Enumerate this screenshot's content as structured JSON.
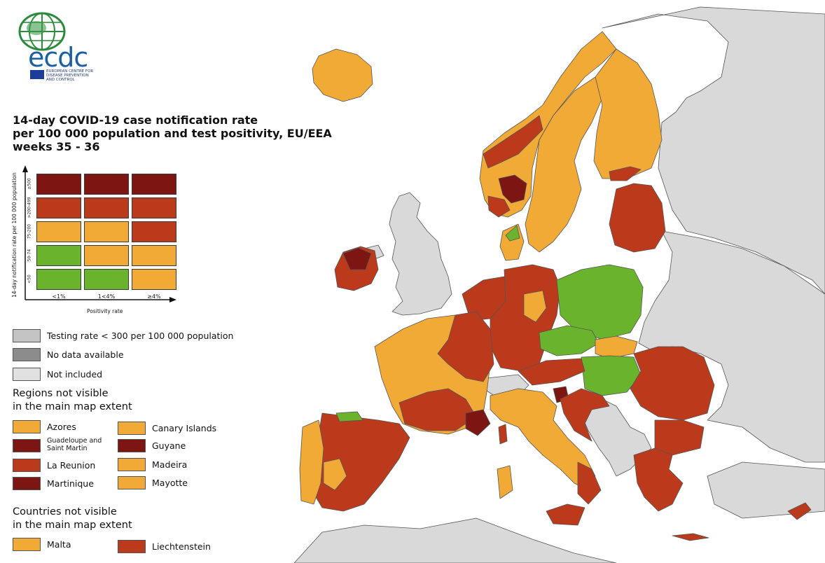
{
  "logo": {
    "wordmark": "ecdc",
    "subtitle_lines": [
      "EUROPEAN CENTRE FOR",
      "DISEASE PREVENTION",
      "AND CONTROL"
    ]
  },
  "title_lines": [
    "14-day COVID-19 case notification rate",
    "per 100 000 population and test positivity, EU/EEA",
    "weeks 35 - 36"
  ],
  "colors": {
    "green": "#6ab42d",
    "orange": "#f2aa37",
    "red": "#bc3a1c",
    "darkred": "#7d1512",
    "grey_testing": "#c4c4c4",
    "grey_nodata": "#8c8c8c",
    "grey_notincluded": "#e1e1e1",
    "non_eu": "#d9d9d9",
    "sea": "#ffffff"
  },
  "matrix": {
    "y_axis_title": "14-day notification rate per 100 000 population",
    "x_axis_title": "Positivity rate",
    "rows": [
      "≥500",
      ">200-499",
      "75-200",
      "50-74",
      "<50"
    ],
    "cols": [
      "<1%",
      "1<4%",
      "≥4%"
    ],
    "cells": [
      [
        "darkred",
        "darkred",
        "darkred"
      ],
      [
        "red",
        "red",
        "red"
      ],
      [
        "orange",
        "orange",
        "red"
      ],
      [
        "green",
        "orange",
        "orange"
      ],
      [
        "green",
        "green",
        "orange"
      ]
    ]
  },
  "legend": {
    "grey_items": [
      {
        "label": "Testing rate < 300 per 100 000 population",
        "color": "grey_testing"
      },
      {
        "label": "No data available",
        "color": "grey_nodata"
      },
      {
        "label": "Not included",
        "color": "grey_notincluded"
      }
    ],
    "regions_heading": [
      "Regions not visible",
      "in the main map extent"
    ],
    "regions": [
      {
        "label": "Azores",
        "color": "orange"
      },
      {
        "label": "Canary Islands",
        "color": "orange"
      },
      {
        "label": "Guadeloupe and Saint Martin",
        "color": "darkred"
      },
      {
        "label": "Guyane",
        "color": "darkred"
      },
      {
        "label": "La Reunion",
        "color": "red"
      },
      {
        "label": "Madeira",
        "color": "orange"
      },
      {
        "label": "Martinique",
        "color": "darkred"
      },
      {
        "label": "Mayotte",
        "color": "orange"
      }
    ],
    "countries_heading": [
      "Countries not visible",
      "in the main map extent"
    ],
    "countries": [
      {
        "label": "Malta",
        "color": "orange"
      },
      {
        "label": "Liechtenstein",
        "color": "red"
      }
    ]
  }
}
